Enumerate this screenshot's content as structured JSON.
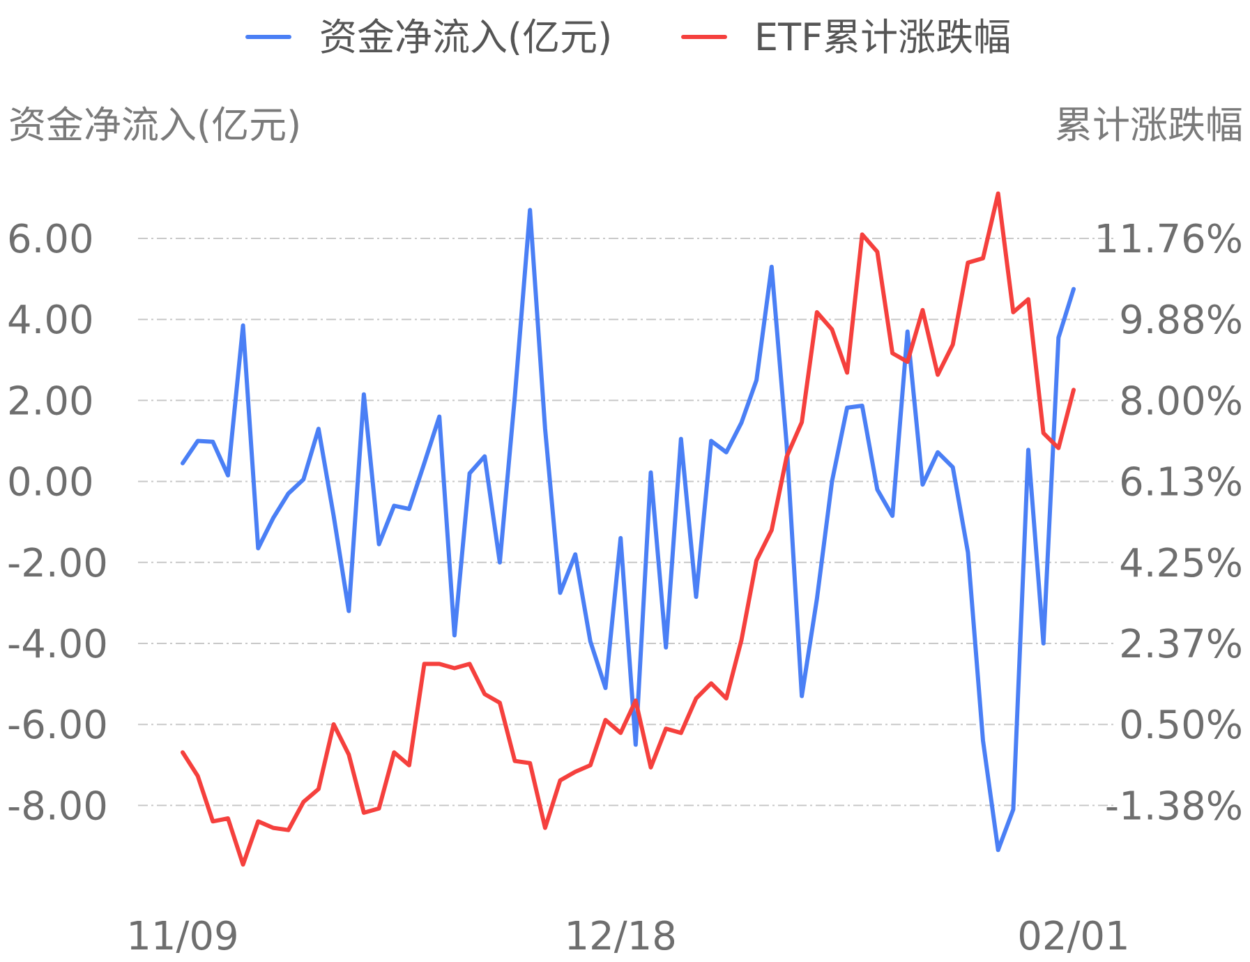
{
  "chart_data": {
    "type": "line",
    "legend": {
      "placement": "top-center",
      "items": [
        {
          "label": "资金净流入(亿元)",
          "color": "#4a7ff5"
        },
        {
          "label": "ETF累计涨跌幅",
          "color": "#f5403d"
        }
      ]
    },
    "y_left": {
      "title": "资金净流入(亿元)",
      "tick_labels": [
        "6.00",
        "4.00",
        "2.00",
        "0.00",
        "-2.00",
        "-4.00",
        "-6.00",
        "-8.00"
      ],
      "tick_values": [
        6,
        4,
        2,
        0,
        -2,
        -4,
        -6,
        -8
      ],
      "range": [
        -9.2,
        6.8
      ]
    },
    "y_right": {
      "title": "累计涨跌幅",
      "tick_labels": [
        "11.76%",
        "9.88%",
        "8.00%",
        "6.13%",
        "4.25%",
        "2.37%",
        "0.50%",
        "-1.38%"
      ]
    },
    "x_axis": {
      "tick_labels": [
        {
          "label": "11/09",
          "index": 0
        },
        {
          "label": "12/18",
          "index": 29
        },
        {
          "label": "02/01",
          "index": 59
        }
      ]
    },
    "grid": "horizontal-dashed",
    "series": [
      {
        "name": "资金净流入(亿元)",
        "axis": "left",
        "color": "#4a7ff5",
        "values": [
          0.45,
          1.0,
          0.98,
          0.15,
          3.85,
          -1.65,
          -0.9,
          -0.3,
          0.05,
          1.3,
          -0.85,
          -3.2,
          2.15,
          -1.55,
          -0.6,
          -0.68,
          0.45,
          1.6,
          -3.8,
          0.2,
          0.62,
          -2.0,
          2.1,
          6.7,
          1.3,
          -2.75,
          -1.8,
          -3.95,
          -5.1,
          -1.4,
          -6.5,
          0.22,
          -4.1,
          1.05,
          -2.85,
          1.0,
          0.72,
          1.45,
          2.5,
          5.3,
          0.9,
          -5.3,
          -2.9,
          0.0,
          1.82,
          1.87,
          -0.2,
          -0.85,
          3.7,
          -0.08,
          0.72,
          0.35,
          -1.75,
          -6.4,
          -9.1,
          -8.1,
          0.78,
          -4.0,
          3.55,
          4.75
        ]
      },
      {
        "name": "ETF累计涨跌幅",
        "axis": "right",
        "values": [
          -0.15,
          -0.7,
          -1.75,
          -1.68,
          -2.75,
          -1.75,
          -1.9,
          -1.95,
          -1.3,
          -1.0,
          0.5,
          -0.2,
          -1.55,
          -1.45,
          -0.15,
          -0.45,
          1.9,
          1.9,
          1.8,
          1.9,
          1.2,
          1.0,
          -0.35,
          -0.4,
          -1.9,
          -0.8,
          -0.6,
          -0.45,
          0.6,
          0.3,
          1.05,
          -0.5,
          0.4,
          0.3,
          1.1,
          1.45,
          1.1,
          2.45,
          4.3,
          5.0,
          6.7,
          7.5,
          10.05,
          9.65,
          8.65,
          11.85,
          11.45,
          9.1,
          8.9,
          10.1,
          8.6,
          9.3,
          11.2,
          11.3,
          12.8,
          10.05,
          10.35,
          7.25,
          6.9,
          8.25
        ],
        "color": "#f5403d"
      }
    ]
  }
}
